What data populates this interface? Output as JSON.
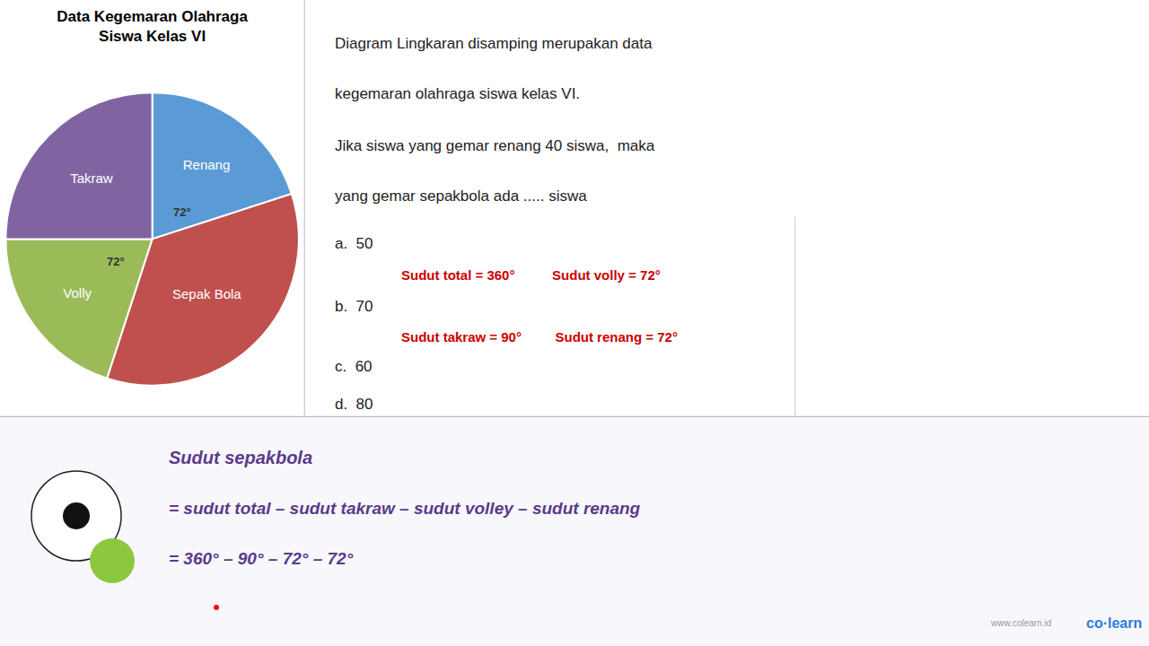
{
  "chart_data": {
    "type": "pie",
    "title": "Data Kegemaran Olahraga\nSiswa Kelas VI",
    "categories": [
      "Renang",
      "Sepak Bola",
      "Volly",
      "Takraw"
    ],
    "values": [
      72,
      126,
      72,
      90
    ],
    "colors": [
      "#5B9BD5",
      "#C0504D",
      "#9BBB59",
      "#8064A2"
    ],
    "annotations": [
      "72°",
      "72°",
      "Diagram Lingkaran disamping merupakan data",
      "kegemaran olahraga siswa kelas VI.",
      "Jika siswa yang gemar renang 40 siswa,  maka",
      "yang gemar sepakbola ada ..... siswa",
      "a.  50",
      "Sudut total = 360°          Sudut volly = 72°",
      "b.  70",
      "Sudut takraw = 90°         Sudut renang = 72°",
      "c.  60",
      "d.  80",
      "Sudut sepakbola",
      "= sudut total – sudut takraw – sudut volley – sudut renang",
      "= 360° – 90° – 72° – 72°",
      "www.colearn.id",
      "co·learn"
    ]
  }
}
